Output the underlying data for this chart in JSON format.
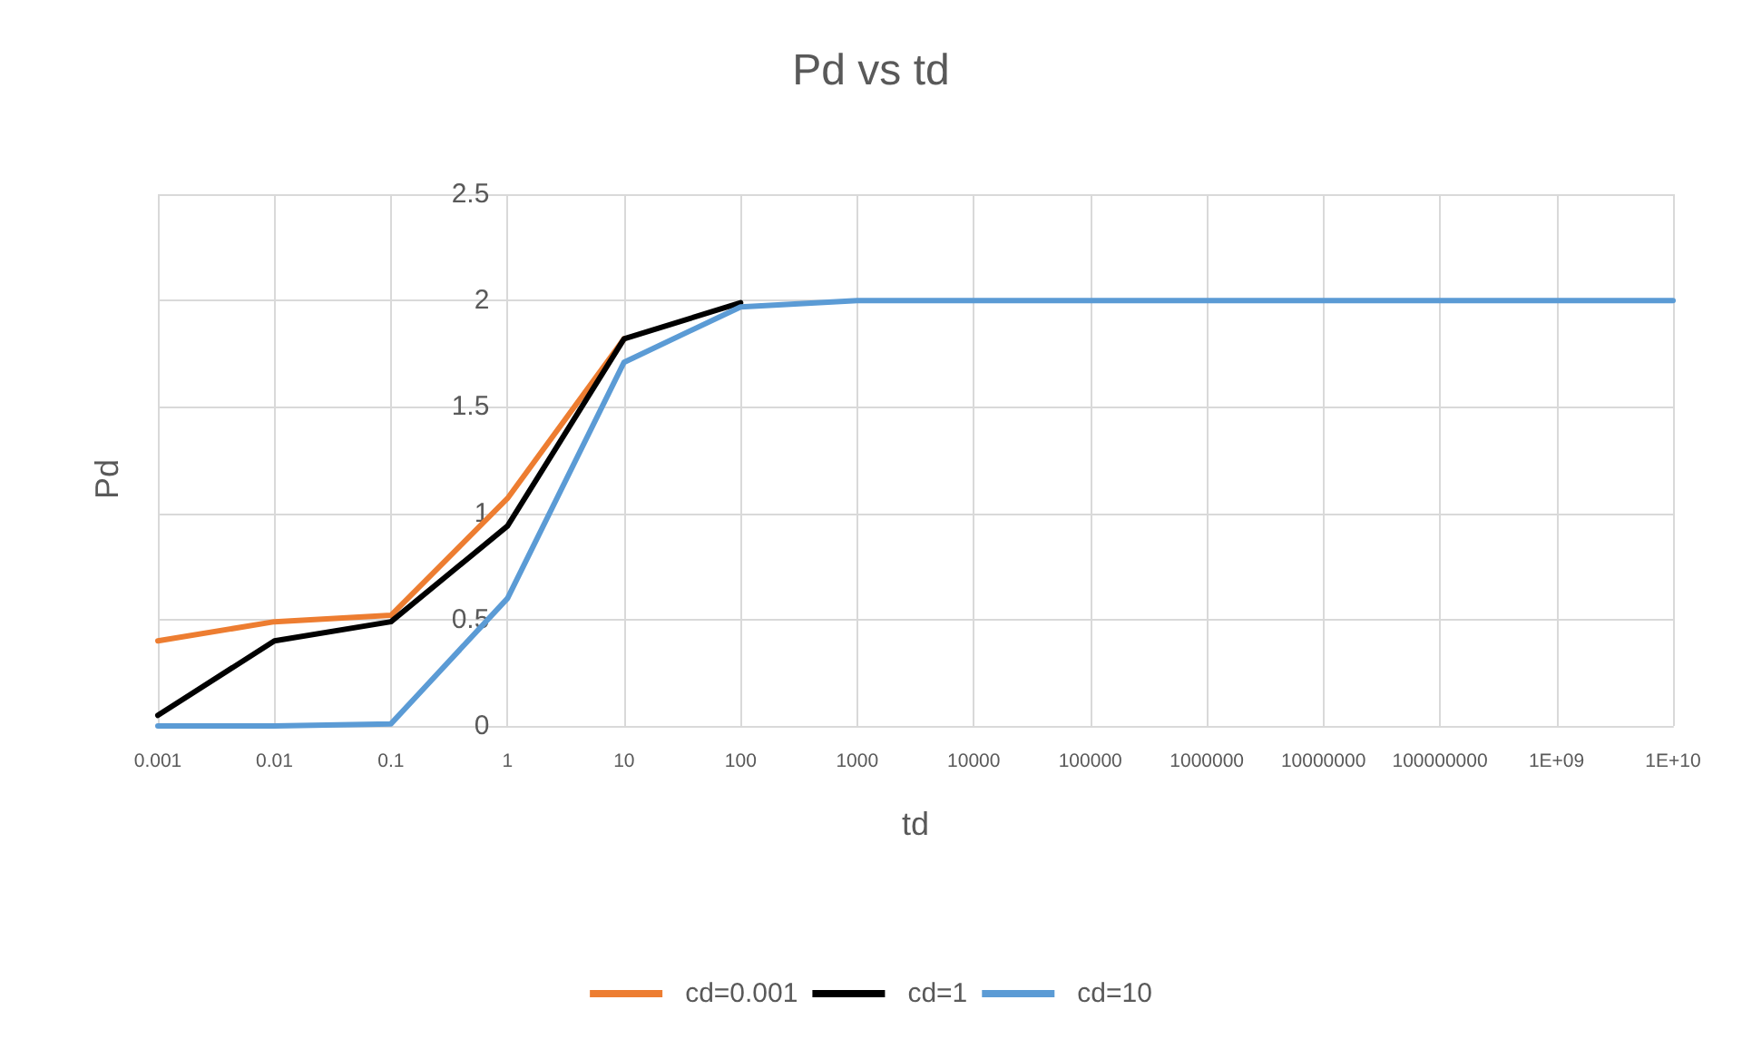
{
  "chart_data": {
    "type": "line",
    "title": "Pd vs td",
    "xlabel": "td",
    "ylabel": "Pd",
    "categories": [
      "0.001",
      "0.01",
      "0.1",
      "1",
      "10",
      "100",
      "1000",
      "10000",
      "100000",
      "1000000",
      "10000000",
      "100000000",
      "1E+09",
      "1E+10"
    ],
    "series": [
      {
        "name": "cd=0.001",
        "color": "#ed7d31",
        "values": [
          0.4,
          0.49,
          0.52,
          1.07,
          1.82,
          null,
          null,
          null,
          null,
          null,
          null,
          null,
          null,
          null
        ]
      },
      {
        "name": "cd=1",
        "color": "#000000",
        "values": [
          0.05,
          0.4,
          0.49,
          0.94,
          1.82,
          1.99,
          null,
          null,
          null,
          null,
          null,
          null,
          null,
          null
        ]
      },
      {
        "name": "cd=10",
        "color": "#5b9bd5",
        "values": [
          0,
          0,
          0.01,
          0.6,
          1.71,
          1.97,
          2,
          2,
          2,
          2,
          2,
          2,
          2,
          2
        ]
      }
    ],
    "ylim": [
      0,
      2.5
    ],
    "yticks": [
      0,
      0.5,
      1,
      1.5,
      2,
      2.5
    ],
    "grid": true,
    "legend": "bottom",
    "marker": "none",
    "line_style": "solid"
  }
}
